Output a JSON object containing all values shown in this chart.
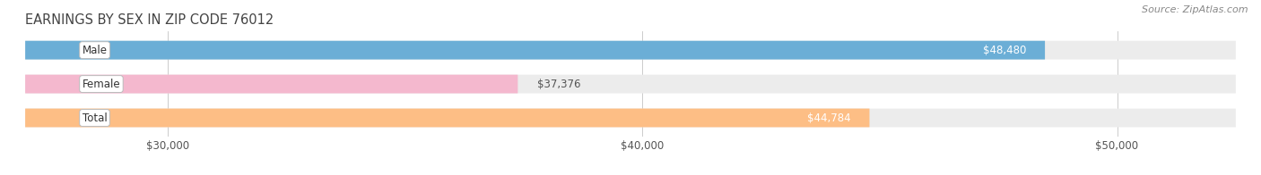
{
  "title": "EARNINGS BY SEX IN ZIP CODE 76012",
  "source": "Source: ZipAtlas.com",
  "categories": [
    "Male",
    "Female",
    "Total"
  ],
  "values": [
    48480,
    37376,
    44784
  ],
  "bar_colors": [
    "#6BAED6",
    "#F4B8CE",
    "#FDBE85"
  ],
  "label_colors_inside": [
    "#ffffff",
    "#ffffff",
    "#ffffff"
  ],
  "value_labels": [
    "$48,480",
    "$37,376",
    "$44,784"
  ],
  "value_label_inside": [
    true,
    false,
    true
  ],
  "x_min": 27000,
  "x_max": 52500,
  "x_ticks": [
    30000,
    40000,
    50000
  ],
  "x_tick_labels": [
    "$30,000",
    "$40,000",
    "$50,000"
  ],
  "bar_bg_color": "#ececec",
  "title_fontsize": 10.5,
  "source_fontsize": 8,
  "tick_fontsize": 8.5,
  "bar_height": 0.55,
  "cat_label_fontsize": 8.5,
  "val_label_fontsize": 8.5
}
